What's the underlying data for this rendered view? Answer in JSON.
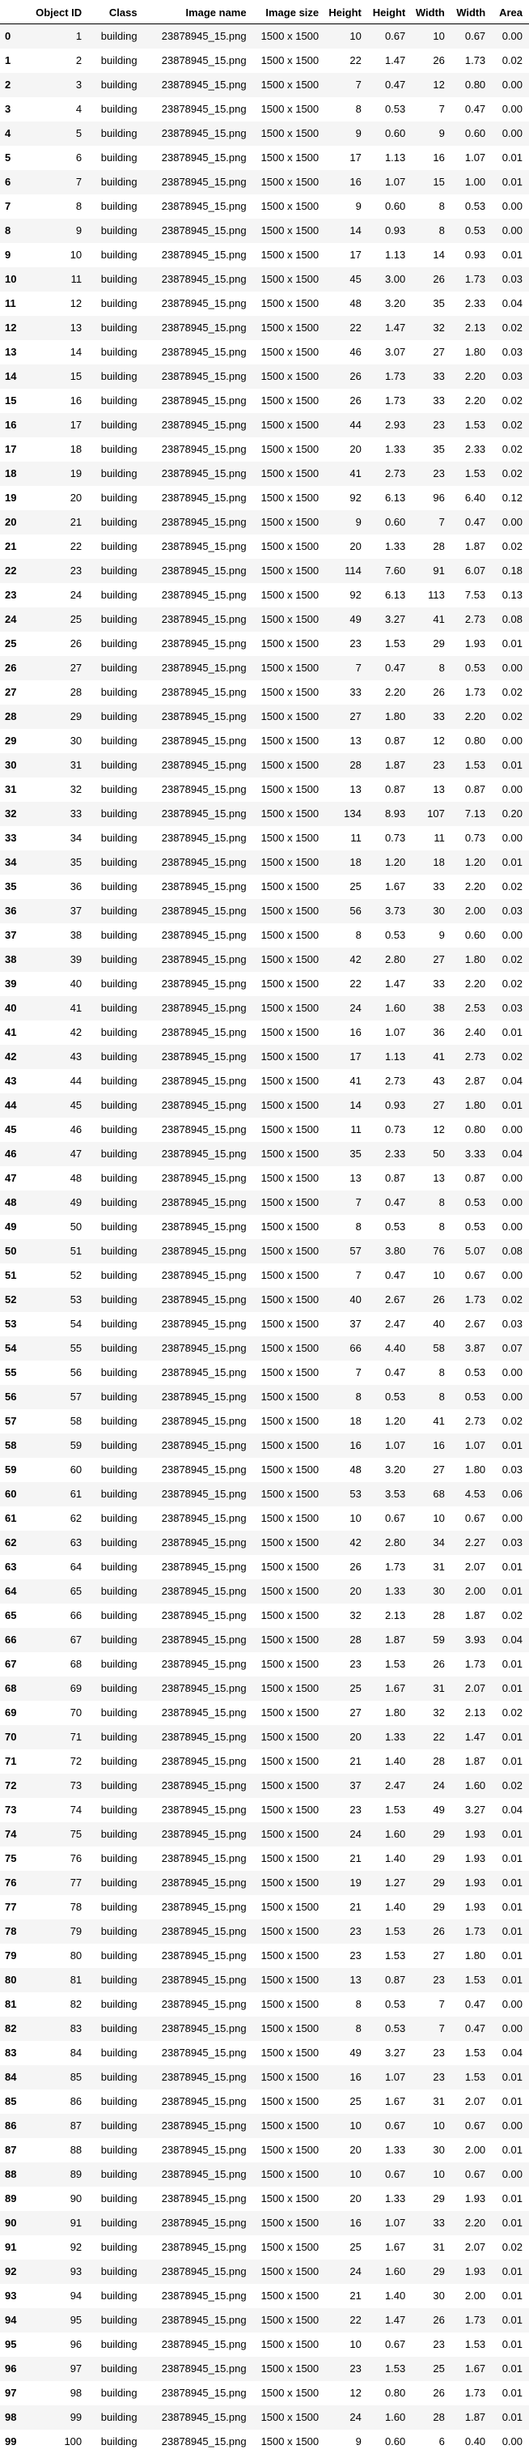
{
  "table": {
    "columns": [
      "",
      "Object ID",
      "Class",
      "Image name",
      "Image size",
      "Height",
      "Height",
      "Width",
      "Width",
      "Area"
    ],
    "rows": [
      [
        0,
        1,
        "building",
        "23878945_15.png",
        "1500 x 1500",
        10,
        "0.67",
        10,
        "0.67",
        "0.00"
      ],
      [
        1,
        2,
        "building",
        "23878945_15.png",
        "1500 x 1500",
        22,
        "1.47",
        26,
        "1.73",
        "0.02"
      ],
      [
        2,
        3,
        "building",
        "23878945_15.png",
        "1500 x 1500",
        7,
        "0.47",
        12,
        "0.80",
        "0.00"
      ],
      [
        3,
        4,
        "building",
        "23878945_15.png",
        "1500 x 1500",
        8,
        "0.53",
        7,
        "0.47",
        "0.00"
      ],
      [
        4,
        5,
        "building",
        "23878945_15.png",
        "1500 x 1500",
        9,
        "0.60",
        9,
        "0.60",
        "0.00"
      ],
      [
        5,
        6,
        "building",
        "23878945_15.png",
        "1500 x 1500",
        17,
        "1.13",
        16,
        "1.07",
        "0.01"
      ],
      [
        6,
        7,
        "building",
        "23878945_15.png",
        "1500 x 1500",
        16,
        "1.07",
        15,
        "1.00",
        "0.01"
      ],
      [
        7,
        8,
        "building",
        "23878945_15.png",
        "1500 x 1500",
        9,
        "0.60",
        8,
        "0.53",
        "0.00"
      ],
      [
        8,
        9,
        "building",
        "23878945_15.png",
        "1500 x 1500",
        14,
        "0.93",
        8,
        "0.53",
        "0.00"
      ],
      [
        9,
        10,
        "building",
        "23878945_15.png",
        "1500 x 1500",
        17,
        "1.13",
        14,
        "0.93",
        "0.01"
      ],
      [
        10,
        11,
        "building",
        "23878945_15.png",
        "1500 x 1500",
        45,
        "3.00",
        26,
        "1.73",
        "0.03"
      ],
      [
        11,
        12,
        "building",
        "23878945_15.png",
        "1500 x 1500",
        48,
        "3.20",
        35,
        "2.33",
        "0.04"
      ],
      [
        12,
        13,
        "building",
        "23878945_15.png",
        "1500 x 1500",
        22,
        "1.47",
        32,
        "2.13",
        "0.02"
      ],
      [
        13,
        14,
        "building",
        "23878945_15.png",
        "1500 x 1500",
        46,
        "3.07",
        27,
        "1.80",
        "0.03"
      ],
      [
        14,
        15,
        "building",
        "23878945_15.png",
        "1500 x 1500",
        26,
        "1.73",
        33,
        "2.20",
        "0.03"
      ],
      [
        15,
        16,
        "building",
        "23878945_15.png",
        "1500 x 1500",
        26,
        "1.73",
        33,
        "2.20",
        "0.02"
      ],
      [
        16,
        17,
        "building",
        "23878945_15.png",
        "1500 x 1500",
        44,
        "2.93",
        23,
        "1.53",
        "0.02"
      ],
      [
        17,
        18,
        "building",
        "23878945_15.png",
        "1500 x 1500",
        20,
        "1.33",
        35,
        "2.33",
        "0.02"
      ],
      [
        18,
        19,
        "building",
        "23878945_15.png",
        "1500 x 1500",
        41,
        "2.73",
        23,
        "1.53",
        "0.02"
      ],
      [
        19,
        20,
        "building",
        "23878945_15.png",
        "1500 x 1500",
        92,
        "6.13",
        96,
        "6.40",
        "0.12"
      ],
      [
        20,
        21,
        "building",
        "23878945_15.png",
        "1500 x 1500",
        9,
        "0.60",
        7,
        "0.47",
        "0.00"
      ],
      [
        21,
        22,
        "building",
        "23878945_15.png",
        "1500 x 1500",
        20,
        "1.33",
        28,
        "1.87",
        "0.02"
      ],
      [
        22,
        23,
        "building",
        "23878945_15.png",
        "1500 x 1500",
        114,
        "7.60",
        91,
        "6.07",
        "0.18"
      ],
      [
        23,
        24,
        "building",
        "23878945_15.png",
        "1500 x 1500",
        92,
        "6.13",
        113,
        "7.53",
        "0.13"
      ],
      [
        24,
        25,
        "building",
        "23878945_15.png",
        "1500 x 1500",
        49,
        "3.27",
        41,
        "2.73",
        "0.08"
      ],
      [
        25,
        26,
        "building",
        "23878945_15.png",
        "1500 x 1500",
        23,
        "1.53",
        29,
        "1.93",
        "0.01"
      ],
      [
        26,
        27,
        "building",
        "23878945_15.png",
        "1500 x 1500",
        7,
        "0.47",
        8,
        "0.53",
        "0.00"
      ],
      [
        27,
        28,
        "building",
        "23878945_15.png",
        "1500 x 1500",
        33,
        "2.20",
        26,
        "1.73",
        "0.02"
      ],
      [
        28,
        29,
        "building",
        "23878945_15.png",
        "1500 x 1500",
        27,
        "1.80",
        33,
        "2.20",
        "0.02"
      ],
      [
        29,
        30,
        "building",
        "23878945_15.png",
        "1500 x 1500",
        13,
        "0.87",
        12,
        "0.80",
        "0.00"
      ],
      [
        30,
        31,
        "building",
        "23878945_15.png",
        "1500 x 1500",
        28,
        "1.87",
        23,
        "1.53",
        "0.01"
      ],
      [
        31,
        32,
        "building",
        "23878945_15.png",
        "1500 x 1500",
        13,
        "0.87",
        13,
        "0.87",
        "0.00"
      ],
      [
        32,
        33,
        "building",
        "23878945_15.png",
        "1500 x 1500",
        134,
        "8.93",
        107,
        "7.13",
        "0.20"
      ],
      [
        33,
        34,
        "building",
        "23878945_15.png",
        "1500 x 1500",
        11,
        "0.73",
        11,
        "0.73",
        "0.00"
      ],
      [
        34,
        35,
        "building",
        "23878945_15.png",
        "1500 x 1500",
        18,
        "1.20",
        18,
        "1.20",
        "0.01"
      ],
      [
        35,
        36,
        "building",
        "23878945_15.png",
        "1500 x 1500",
        25,
        "1.67",
        33,
        "2.20",
        "0.02"
      ],
      [
        36,
        37,
        "building",
        "23878945_15.png",
        "1500 x 1500",
        56,
        "3.73",
        30,
        "2.00",
        "0.03"
      ],
      [
        37,
        38,
        "building",
        "23878945_15.png",
        "1500 x 1500",
        8,
        "0.53",
        9,
        "0.60",
        "0.00"
      ],
      [
        38,
        39,
        "building",
        "23878945_15.png",
        "1500 x 1500",
        42,
        "2.80",
        27,
        "1.80",
        "0.02"
      ],
      [
        39,
        40,
        "building",
        "23878945_15.png",
        "1500 x 1500",
        22,
        "1.47",
        33,
        "2.20",
        "0.02"
      ],
      [
        40,
        41,
        "building",
        "23878945_15.png",
        "1500 x 1500",
        24,
        "1.60",
        38,
        "2.53",
        "0.03"
      ],
      [
        41,
        42,
        "building",
        "23878945_15.png",
        "1500 x 1500",
        16,
        "1.07",
        36,
        "2.40",
        "0.01"
      ],
      [
        42,
        43,
        "building",
        "23878945_15.png",
        "1500 x 1500",
        17,
        "1.13",
        41,
        "2.73",
        "0.02"
      ],
      [
        43,
        44,
        "building",
        "23878945_15.png",
        "1500 x 1500",
        41,
        "2.73",
        43,
        "2.87",
        "0.04"
      ],
      [
        44,
        45,
        "building",
        "23878945_15.png",
        "1500 x 1500",
        14,
        "0.93",
        27,
        "1.80",
        "0.01"
      ],
      [
        45,
        46,
        "building",
        "23878945_15.png",
        "1500 x 1500",
        11,
        "0.73",
        12,
        "0.80",
        "0.00"
      ],
      [
        46,
        47,
        "building",
        "23878945_15.png",
        "1500 x 1500",
        35,
        "2.33",
        50,
        "3.33",
        "0.04"
      ],
      [
        47,
        48,
        "building",
        "23878945_15.png",
        "1500 x 1500",
        13,
        "0.87",
        13,
        "0.87",
        "0.00"
      ],
      [
        48,
        49,
        "building",
        "23878945_15.png",
        "1500 x 1500",
        7,
        "0.47",
        8,
        "0.53",
        "0.00"
      ],
      [
        49,
        50,
        "building",
        "23878945_15.png",
        "1500 x 1500",
        8,
        "0.53",
        8,
        "0.53",
        "0.00"
      ],
      [
        50,
        51,
        "building",
        "23878945_15.png",
        "1500 x 1500",
        57,
        "3.80",
        76,
        "5.07",
        "0.08"
      ],
      [
        51,
        52,
        "building",
        "23878945_15.png",
        "1500 x 1500",
        7,
        "0.47",
        10,
        "0.67",
        "0.00"
      ],
      [
        52,
        53,
        "building",
        "23878945_15.png",
        "1500 x 1500",
        40,
        "2.67",
        26,
        "1.73",
        "0.02"
      ],
      [
        53,
        54,
        "building",
        "23878945_15.png",
        "1500 x 1500",
        37,
        "2.47",
        40,
        "2.67",
        "0.03"
      ],
      [
        54,
        55,
        "building",
        "23878945_15.png",
        "1500 x 1500",
        66,
        "4.40",
        58,
        "3.87",
        "0.07"
      ],
      [
        55,
        56,
        "building",
        "23878945_15.png",
        "1500 x 1500",
        7,
        "0.47",
        8,
        "0.53",
        "0.00"
      ],
      [
        56,
        57,
        "building",
        "23878945_15.png",
        "1500 x 1500",
        8,
        "0.53",
        8,
        "0.53",
        "0.00"
      ],
      [
        57,
        58,
        "building",
        "23878945_15.png",
        "1500 x 1500",
        18,
        "1.20",
        41,
        "2.73",
        "0.02"
      ],
      [
        58,
        59,
        "building",
        "23878945_15.png",
        "1500 x 1500",
        16,
        "1.07",
        16,
        "1.07",
        "0.01"
      ],
      [
        59,
        60,
        "building",
        "23878945_15.png",
        "1500 x 1500",
        48,
        "3.20",
        27,
        "1.80",
        "0.03"
      ],
      [
        60,
        61,
        "building",
        "23878945_15.png",
        "1500 x 1500",
        53,
        "3.53",
        68,
        "4.53",
        "0.06"
      ],
      [
        61,
        62,
        "building",
        "23878945_15.png",
        "1500 x 1500",
        10,
        "0.67",
        10,
        "0.67",
        "0.00"
      ],
      [
        62,
        63,
        "building",
        "23878945_15.png",
        "1500 x 1500",
        42,
        "2.80",
        34,
        "2.27",
        "0.03"
      ],
      [
        63,
        64,
        "building",
        "23878945_15.png",
        "1500 x 1500",
        26,
        "1.73",
        31,
        "2.07",
        "0.01"
      ],
      [
        64,
        65,
        "building",
        "23878945_15.png",
        "1500 x 1500",
        20,
        "1.33",
        30,
        "2.00",
        "0.01"
      ],
      [
        65,
        66,
        "building",
        "23878945_15.png",
        "1500 x 1500",
        32,
        "2.13",
        28,
        "1.87",
        "0.02"
      ],
      [
        66,
        67,
        "building",
        "23878945_15.png",
        "1500 x 1500",
        28,
        "1.87",
        59,
        "3.93",
        "0.04"
      ],
      [
        67,
        68,
        "building",
        "23878945_15.png",
        "1500 x 1500",
        23,
        "1.53",
        26,
        "1.73",
        "0.01"
      ],
      [
        68,
        69,
        "building",
        "23878945_15.png",
        "1500 x 1500",
        25,
        "1.67",
        31,
        "2.07",
        "0.01"
      ],
      [
        69,
        70,
        "building",
        "23878945_15.png",
        "1500 x 1500",
        27,
        "1.80",
        32,
        "2.13",
        "0.02"
      ],
      [
        70,
        71,
        "building",
        "23878945_15.png",
        "1500 x 1500",
        20,
        "1.33",
        22,
        "1.47",
        "0.01"
      ],
      [
        71,
        72,
        "building",
        "23878945_15.png",
        "1500 x 1500",
        21,
        "1.40",
        28,
        "1.87",
        "0.01"
      ],
      [
        72,
        73,
        "building",
        "23878945_15.png",
        "1500 x 1500",
        37,
        "2.47",
        24,
        "1.60",
        "0.02"
      ],
      [
        73,
        74,
        "building",
        "23878945_15.png",
        "1500 x 1500",
        23,
        "1.53",
        49,
        "3.27",
        "0.04"
      ],
      [
        74,
        75,
        "building",
        "23878945_15.png",
        "1500 x 1500",
        24,
        "1.60",
        29,
        "1.93",
        "0.01"
      ],
      [
        75,
        76,
        "building",
        "23878945_15.png",
        "1500 x 1500",
        21,
        "1.40",
        29,
        "1.93",
        "0.01"
      ],
      [
        76,
        77,
        "building",
        "23878945_15.png",
        "1500 x 1500",
        19,
        "1.27",
        29,
        "1.93",
        "0.01"
      ],
      [
        77,
        78,
        "building",
        "23878945_15.png",
        "1500 x 1500",
        21,
        "1.40",
        29,
        "1.93",
        "0.01"
      ],
      [
        78,
        79,
        "building",
        "23878945_15.png",
        "1500 x 1500",
        23,
        "1.53",
        26,
        "1.73",
        "0.01"
      ],
      [
        79,
        80,
        "building",
        "23878945_15.png",
        "1500 x 1500",
        23,
        "1.53",
        27,
        "1.80",
        "0.01"
      ],
      [
        80,
        81,
        "building",
        "23878945_15.png",
        "1500 x 1500",
        13,
        "0.87",
        23,
        "1.53",
        "0.01"
      ],
      [
        81,
        82,
        "building",
        "23878945_15.png",
        "1500 x 1500",
        8,
        "0.53",
        7,
        "0.47",
        "0.00"
      ],
      [
        82,
        83,
        "building",
        "23878945_15.png",
        "1500 x 1500",
        8,
        "0.53",
        7,
        "0.47",
        "0.00"
      ],
      [
        83,
        84,
        "building",
        "23878945_15.png",
        "1500 x 1500",
        49,
        "3.27",
        23,
        "1.53",
        "0.04"
      ],
      [
        84,
        85,
        "building",
        "23878945_15.png",
        "1500 x 1500",
        16,
        "1.07",
        23,
        "1.53",
        "0.01"
      ],
      [
        85,
        86,
        "building",
        "23878945_15.png",
        "1500 x 1500",
        25,
        "1.67",
        31,
        "2.07",
        "0.01"
      ],
      [
        86,
        87,
        "building",
        "23878945_15.png",
        "1500 x 1500",
        10,
        "0.67",
        10,
        "0.67",
        "0.00"
      ],
      [
        87,
        88,
        "building",
        "23878945_15.png",
        "1500 x 1500",
        20,
        "1.33",
        30,
        "2.00",
        "0.01"
      ],
      [
        88,
        89,
        "building",
        "23878945_15.png",
        "1500 x 1500",
        10,
        "0.67",
        10,
        "0.67",
        "0.00"
      ],
      [
        89,
        90,
        "building",
        "23878945_15.png",
        "1500 x 1500",
        20,
        "1.33",
        29,
        "1.93",
        "0.01"
      ],
      [
        90,
        91,
        "building",
        "23878945_15.png",
        "1500 x 1500",
        16,
        "1.07",
        33,
        "2.20",
        "0.01"
      ],
      [
        91,
        92,
        "building",
        "23878945_15.png",
        "1500 x 1500",
        25,
        "1.67",
        31,
        "2.07",
        "0.02"
      ],
      [
        92,
        93,
        "building",
        "23878945_15.png",
        "1500 x 1500",
        24,
        "1.60",
        29,
        "1.93",
        "0.01"
      ],
      [
        93,
        94,
        "building",
        "23878945_15.png",
        "1500 x 1500",
        21,
        "1.40",
        30,
        "2.00",
        "0.01"
      ],
      [
        94,
        95,
        "building",
        "23878945_15.png",
        "1500 x 1500",
        22,
        "1.47",
        26,
        "1.73",
        "0.01"
      ],
      [
        95,
        96,
        "building",
        "23878945_15.png",
        "1500 x 1500",
        10,
        "0.67",
        23,
        "1.53",
        "0.01"
      ],
      [
        96,
        97,
        "building",
        "23878945_15.png",
        "1500 x 1500",
        23,
        "1.53",
        25,
        "1.67",
        "0.01"
      ],
      [
        97,
        98,
        "building",
        "23878945_15.png",
        "1500 x 1500",
        12,
        "0.80",
        26,
        "1.73",
        "0.01"
      ],
      [
        98,
        99,
        "building",
        "23878945_15.png",
        "1500 x 1500",
        24,
        "1.60",
        28,
        "1.87",
        "0.01"
      ],
      [
        99,
        100,
        "building",
        "23878945_15.png",
        "1500 x 1500",
        9,
        "0.60",
        6,
        "0.40",
        "0.00"
      ]
    ]
  }
}
